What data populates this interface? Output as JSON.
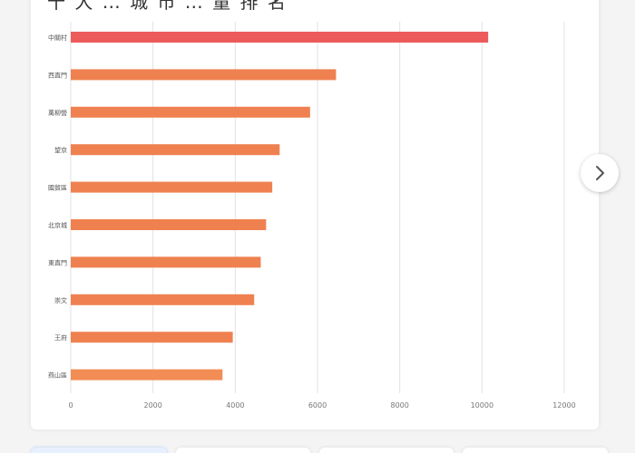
{
  "card": {
    "title": "十 大 … 城 市 … 量 排 名"
  },
  "chart_data": {
    "type": "bar",
    "orientation": "horizontal",
    "title": "",
    "xlabel": "",
    "ylabel": "",
    "categories": [
      "中關村",
      "西直門",
      "萬柳營",
      "望京",
      "國貿區",
      "北京城",
      "東直門",
      "崇文",
      "王府",
      "燕山區"
    ],
    "values": [
      10150,
      6450,
      5820,
      5080,
      4900,
      4750,
      4620,
      4460,
      3940,
      3690
    ],
    "xlim": [
      0,
      12000
    ],
    "xticks": [
      "0",
      "2000",
      "4000",
      "6000",
      "8000",
      "10000",
      "12000"
    ],
    "grid": "vertical",
    "colors": {
      "top": "#ec5a5c",
      "rest": "#ef8150",
      "last": "#f28d55",
      "grid": "#e2e2e2",
      "tick_text": "#777777"
    }
  },
  "controls": {
    "next_icon": "chevron-right-icon"
  }
}
